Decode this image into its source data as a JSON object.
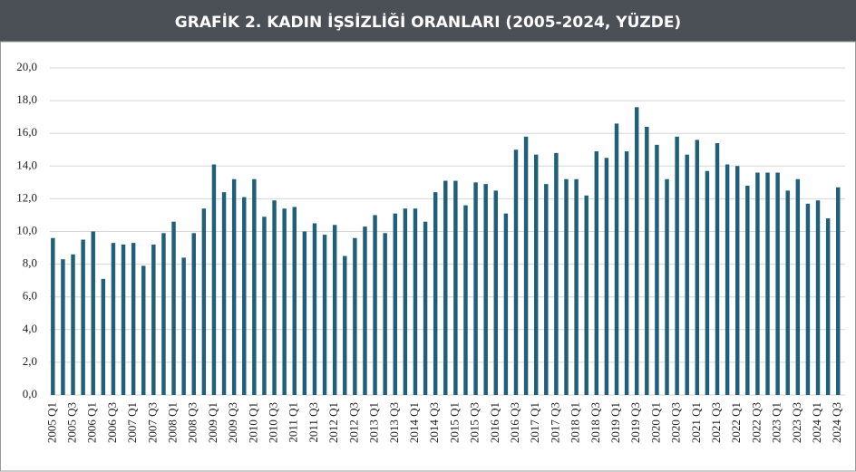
{
  "chart_data": {
    "type": "bar",
    "title": "GRAFİK 2. KADIN İŞSİZLİĞİ ORANLARI (2005-2024, YÜZDE)",
    "categories": [
      "2005 Q1",
      null,
      "2005 Q3",
      null,
      "2006 Q1",
      null,
      "2006 Q3",
      null,
      "2007 Q1",
      null,
      "2007 Q3",
      null,
      "2008 Q1",
      null,
      "2008 Q3",
      null,
      "2009 Q1",
      null,
      "2009 Q3",
      null,
      "2010 Q1",
      null,
      "2010 Q3",
      null,
      "2011 Q1",
      null,
      "2011 Q3",
      null,
      "2012 Q1",
      null,
      "2012 Q3",
      null,
      "2013 Q1",
      null,
      "2013 Q3",
      null,
      "2014 Q1",
      null,
      "2014 Q3",
      null,
      "2015 Q1",
      null,
      "2015 Q3",
      null,
      "2016 Q1",
      null,
      "2016 Q3",
      null,
      "2017 Q1",
      null,
      "2017 Q3",
      null,
      "2018 Q1",
      null,
      "2018 Q3",
      null,
      "2019 Q1",
      null,
      "2019 Q3",
      null,
      "2020 Q1",
      null,
      "2020 Q3",
      null,
      "2021 Q1",
      null,
      "2021 Q3",
      null,
      "2022 Q1",
      null,
      "2022 Q3",
      null,
      "2023 Q1",
      null,
      "2023 Q3",
      null,
      "2024 Q1",
      null,
      "2024 Q3"
    ],
    "values": [
      9.6,
      8.3,
      8.6,
      9.5,
      10.0,
      7.1,
      9.3,
      9.2,
      9.3,
      7.9,
      9.2,
      9.9,
      10.6,
      8.4,
      9.9,
      11.4,
      14.1,
      12.4,
      13.2,
      12.1,
      13.2,
      10.9,
      11.9,
      11.4,
      11.5,
      10.0,
      10.5,
      9.8,
      10.4,
      8.5,
      9.6,
      10.3,
      11.0,
      9.9,
      11.1,
      11.4,
      11.4,
      10.6,
      12.4,
      13.1,
      13.1,
      11.6,
      13.0,
      12.9,
      12.5,
      11.1,
      15.0,
      15.8,
      14.7,
      12.9,
      14.8,
      13.2,
      13.2,
      12.2,
      14.9,
      14.5,
      16.6,
      14.9,
      17.6,
      16.4,
      15.3,
      13.2,
      15.8,
      14.7,
      15.6,
      13.7,
      15.4,
      14.1,
      14.0,
      12.8,
      13.6,
      13.6,
      13.6,
      12.5,
      13.2,
      11.7,
      11.9,
      10.8,
      12.7
    ],
    "color": "#1f5f7a",
    "ylim": [
      0,
      20
    ],
    "yticks": [
      {
        "value": 0,
        "label": "0,0"
      },
      {
        "value": 2,
        "label": "2,0"
      },
      {
        "value": 4,
        "label": "4,0"
      },
      {
        "value": 6,
        "label": "6,0"
      },
      {
        "value": 8,
        "label": "8,0"
      },
      {
        "value": 10,
        "label": "10,0"
      },
      {
        "value": 12,
        "label": "12,0"
      },
      {
        "value": 14,
        "label": "14,0"
      },
      {
        "value": 16,
        "label": "16,0"
      },
      {
        "value": 18,
        "label": "18,0"
      },
      {
        "value": 20,
        "label": "20,0"
      }
    ],
    "grid": true
  }
}
